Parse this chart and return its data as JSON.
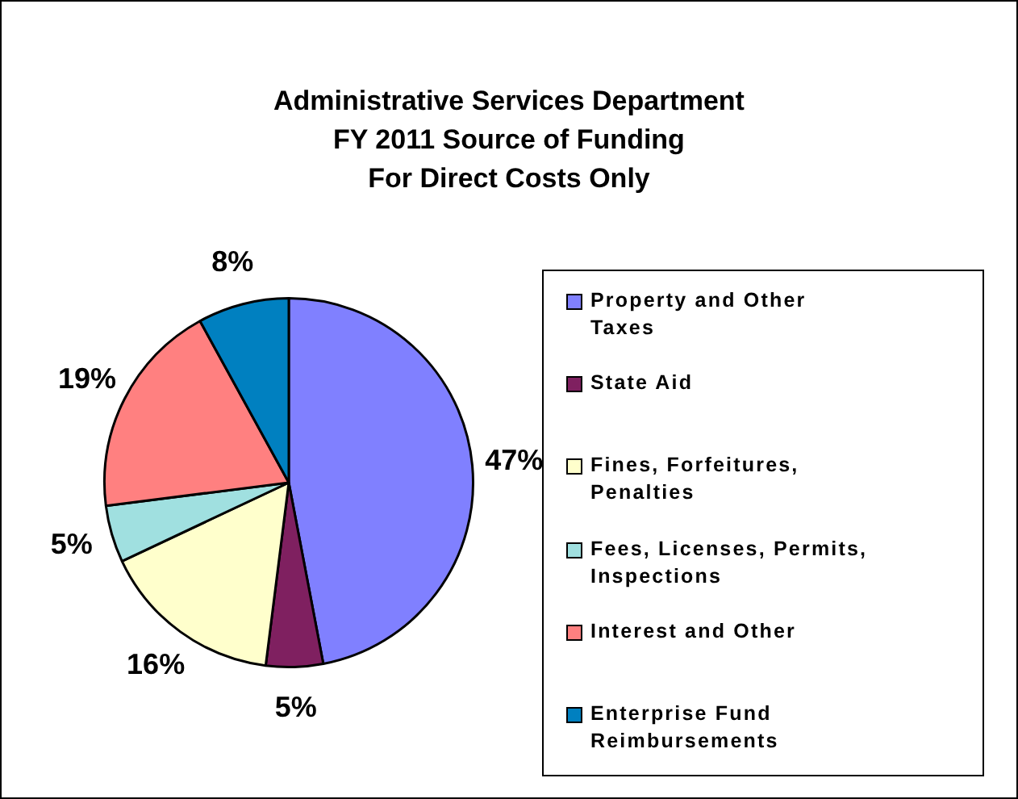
{
  "chart_data": {
    "type": "pie",
    "title": "Administrative Services Department\nFY 2011 Source of Funding\nFor Direct Costs Only",
    "categories": [
      "Property and Other Taxes",
      "State Aid",
      "Fines, Forfeitures, Penalties",
      "Fees, Licenses, Permits, Inspections",
      "Interest and Other",
      "Enterprise Fund Reimbursements"
    ],
    "values": [
      47,
      5,
      16,
      5,
      19,
      8
    ],
    "colors": [
      "#8080ff",
      "#7f2060",
      "#ffffcc",
      "#a0e0e0",
      "#ff8080",
      "#0080c0"
    ],
    "value_labels": [
      "47%",
      "5%",
      "16%",
      "5%",
      "19%",
      "8%"
    ],
    "legend": "right"
  }
}
